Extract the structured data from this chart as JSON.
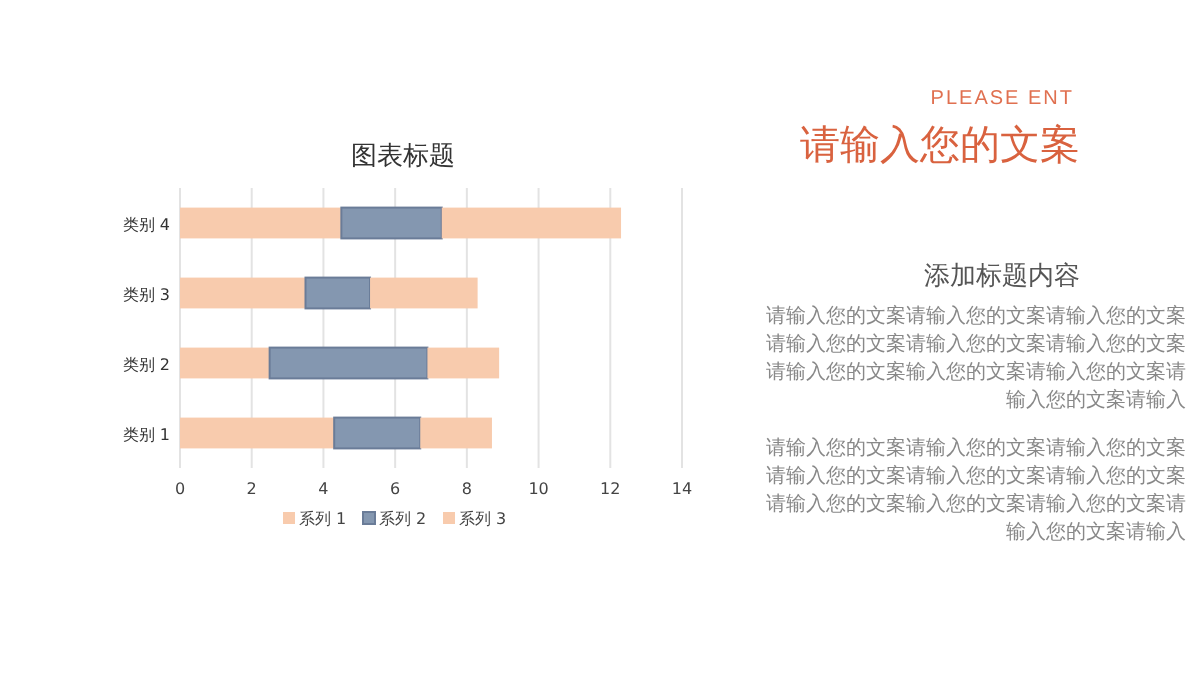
{
  "chart_data": [
    {
      "type": "bar",
      "title": "图表标题",
      "orientation": "horizontal",
      "stacked": true,
      "categories": [
        "类别 4",
        "类别 3",
        "类别 2",
        "类别 1"
      ],
      "series": [
        {
          "name": "系列 1",
          "color": "#f8cbad",
          "values": [
            4.5,
            3.5,
            2.5,
            4.3
          ]
        },
        {
          "name": "系列 2",
          "color": "#8497b0",
          "values": [
            2.8,
            1.8,
            4.4,
            2.4
          ]
        },
        {
          "name": "系列 3",
          "color": "#f8cbad",
          "values": [
            5,
            3,
            2,
            2
          ]
        }
      ],
      "xlim": [
        0,
        14
      ],
      "xticks": [
        0,
        2,
        4,
        6,
        8,
        10,
        12,
        14
      ],
      "grid": "x",
      "legend": "bottom"
    },
    {
      "type": "other",
      "subtitle": "PLEASE ENT",
      "title": "请输入您的文案",
      "annotations": [
        "添加标题内容",
        "请输入您的文案请输入您的文案请输入您的文案请输入您的文案请输入您的文案请输入您的文案请输入您的文案输入您的文案请输入您的文案请输入您的文案请输入",
        "请输入您的文案请输入您的文案请输入您的文案请输入您的文案请输入您的文案请输入您的文案请输入您的文案输入您的文案请输入您的文案请输入您的文案请输入"
      ]
    }
  ]
}
